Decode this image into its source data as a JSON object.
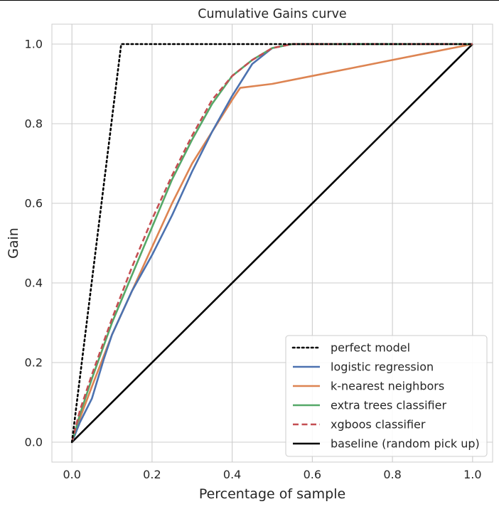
{
  "chart_data": {
    "type": "line",
    "title": "Cumulative Gains curve",
    "xlabel": "Percentage of sample",
    "ylabel": "Gain",
    "xlim": [
      -0.05,
      1.05
    ],
    "ylim": [
      -0.05,
      1.05
    ],
    "xticks": [
      "0.0",
      "0.2",
      "0.4",
      "0.6",
      "0.8",
      "1.0"
    ],
    "yticks": [
      "0.0",
      "0.2",
      "0.4",
      "0.6",
      "0.8",
      "1.0"
    ],
    "grid": true,
    "legend_position": "lower-right",
    "series": [
      {
        "name": "perfect model",
        "color": "#000000",
        "dash": "dotted",
        "x": [
          0.0,
          0.123,
          1.0
        ],
        "y": [
          0.0,
          1.0,
          1.0
        ]
      },
      {
        "name": "logistic regression",
        "color": "#4c72b0",
        "dash": "solid",
        "x": [
          0.0,
          0.02,
          0.05,
          0.08,
          0.1,
          0.15,
          0.2,
          0.25,
          0.3,
          0.35,
          0.4,
          0.45,
          0.5,
          0.55,
          0.6,
          0.7,
          0.8,
          0.9,
          1.0
        ],
        "y": [
          0.0,
          0.05,
          0.11,
          0.21,
          0.27,
          0.38,
          0.47,
          0.57,
          0.68,
          0.78,
          0.87,
          0.95,
          0.99,
          1.0,
          1.0,
          1.0,
          1.0,
          1.0,
          1.0
        ]
      },
      {
        "name": "k-nearest neighbors",
        "color": "#dd8452",
        "dash": "solid",
        "x": [
          0.0,
          0.02,
          0.05,
          0.1,
          0.15,
          0.2,
          0.25,
          0.3,
          0.35,
          0.4,
          0.42,
          0.5,
          0.6,
          0.7,
          0.8,
          0.9,
          1.0
        ],
        "y": [
          0.0,
          0.06,
          0.14,
          0.27,
          0.38,
          0.49,
          0.6,
          0.7,
          0.78,
          0.86,
          0.89,
          0.9,
          0.92,
          0.94,
          0.96,
          0.98,
          1.0
        ]
      },
      {
        "name": "extra trees classifier",
        "color": "#55a868",
        "dash": "solid",
        "x": [
          0.0,
          0.02,
          0.05,
          0.1,
          0.15,
          0.2,
          0.25,
          0.3,
          0.35,
          0.4,
          0.45,
          0.5,
          0.55,
          0.6,
          0.7,
          0.8,
          0.9,
          1.0
        ],
        "y": [
          0.0,
          0.07,
          0.16,
          0.3,
          0.42,
          0.54,
          0.66,
          0.76,
          0.85,
          0.92,
          0.96,
          0.99,
          1.0,
          1.0,
          1.0,
          1.0,
          1.0,
          1.0
        ]
      },
      {
        "name": "xgboos classifier",
        "color": "#c44e52",
        "dash": "dashed",
        "x": [
          0.0,
          0.02,
          0.05,
          0.1,
          0.15,
          0.2,
          0.25,
          0.3,
          0.35,
          0.4,
          0.45,
          0.5,
          0.55,
          0.6,
          0.7,
          0.8,
          0.9,
          1.0
        ],
        "y": [
          0.0,
          0.08,
          0.17,
          0.31,
          0.44,
          0.56,
          0.67,
          0.77,
          0.86,
          0.92,
          0.96,
          0.99,
          1.0,
          1.0,
          1.0,
          1.0,
          1.0,
          1.0
        ]
      },
      {
        "name": "baseline (random pick up)",
        "color": "#000000",
        "dash": "solid",
        "x": [
          0.0,
          1.0
        ],
        "y": [
          0.0,
          1.0
        ]
      }
    ]
  }
}
